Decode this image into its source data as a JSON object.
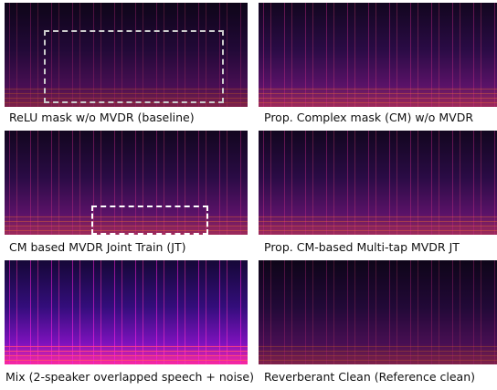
{
  "panels": [
    {
      "caption": "ReLU mask w/o MVDR (baseline)"
    },
    {
      "caption": "Prop. Complex mask (CM) w/o MVDR"
    },
    {
      "caption": "CM based MVDR Joint Train (JT)"
    },
    {
      "caption": "Prop. CM-based Multi-tap MVDR JT"
    },
    {
      "caption": "Mix (2-speaker overlapped speech + noise)"
    },
    {
      "caption": "Reverberant Clean (Reference clean)"
    }
  ]
}
